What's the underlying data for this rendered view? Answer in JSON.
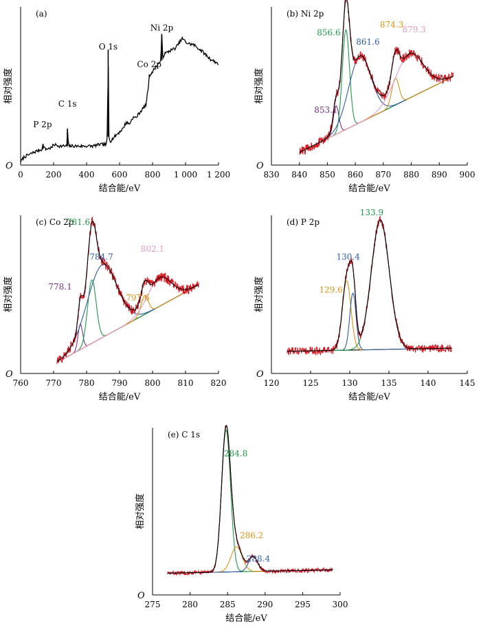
{
  "colors": {
    "raw": "#d8151f",
    "envelope": "#000000",
    "background": "#000000",
    "green": "#1a9a45",
    "blue": "#2b5ba8",
    "purple": "#7a2e86",
    "orange": "#e2920f",
    "pink": "#e89ac2"
  },
  "chart_data": [
    {
      "id": "a",
      "type": "line",
      "panel_label": "(a)",
      "xlabel": "结合能/eV",
      "ylabel": "相对强度",
      "origin_label": "O",
      "xlim": [
        0,
        1200
      ],
      "xticks": [
        0,
        200,
        400,
        600,
        800,
        1000,
        1200
      ],
      "xtick_labels": [
        "0",
        "200",
        "400",
        "600",
        "800",
        "1 000",
        "1 200"
      ],
      "annotations": [
        {
          "text": "P 2p",
          "x": 133,
          "y": 0.24
        },
        {
          "text": "C 1s",
          "x": 284,
          "y": 0.37
        },
        {
          "text": "O 1s",
          "x": 531,
          "y": 0.73
        },
        {
          "text": "Co 2p",
          "x": 780,
          "y": 0.62
        },
        {
          "text": "Ni 2p",
          "x": 856,
          "y": 0.85
        }
      ],
      "series": [
        {
          "role": "survey",
          "color": "envelope",
          "x": [
            0,
            20,
            60,
            100,
            130,
            135,
            150,
            190,
            200,
            240,
            280,
            284,
            290,
            320,
            360,
            400,
            440,
            480,
            520,
            526,
            531,
            536,
            545,
            560,
            580,
            600,
            620,
            640,
            660,
            680,
            700,
            720,
            760,
            775,
            780,
            790,
            800,
            820,
            850,
            856,
            862,
            870,
            900,
            940,
            980,
            1010,
            1050,
            1100,
            1150,
            1200
          ],
          "y": [
            0.02,
            0.05,
            0.07,
            0.09,
            0.1,
            0.13,
            0.1,
            0.11,
            0.13,
            0.12,
            0.12,
            0.23,
            0.12,
            0.12,
            0.12,
            0.12,
            0.12,
            0.13,
            0.13,
            0.18,
            0.73,
            0.18,
            0.15,
            0.17,
            0.19,
            0.21,
            0.23,
            0.27,
            0.26,
            0.3,
            0.3,
            0.33,
            0.38,
            0.5,
            0.56,
            0.58,
            0.59,
            0.62,
            0.66,
            0.82,
            0.68,
            0.7,
            0.72,
            0.74,
            0.8,
            0.77,
            0.76,
            0.72,
            0.67,
            0.64
          ]
        }
      ]
    },
    {
      "id": "b",
      "type": "line",
      "panel_label": "(b) Ni 2p",
      "xlabel": "结合能/eV",
      "ylabel": "相对强度",
      "origin_label": "O",
      "xlim": [
        830,
        900
      ],
      "xticks": [
        830,
        840,
        850,
        860,
        870,
        880,
        890,
        900
      ],
      "xtick_labels": [
        "830",
        "840",
        "850",
        "860",
        "870",
        "880",
        "890",
        "900"
      ],
      "annotations": [
        {
          "text": "853.1",
          "x": 849.5,
          "y": 0.33,
          "color": "purple"
        },
        {
          "text": "856.6",
          "x": 850.5,
          "y": 0.82,
          "color": "green"
        },
        {
          "text": "861.6",
          "x": 864.5,
          "y": 0.76,
          "color": "blue"
        },
        {
          "text": "874.3",
          "x": 873.0,
          "y": 0.87,
          "color": "orange"
        },
        {
          "text": "879.3",
          "x": 881.0,
          "y": 0.84,
          "color": "pink"
        }
      ],
      "background": {
        "x": [
          840,
          895
        ],
        "y": [
          0.08,
          0.56
        ]
      },
      "peaks": [
        {
          "center": 853.1,
          "height": 0.18,
          "width": 1.0,
          "color": "purple"
        },
        {
          "center": 856.6,
          "height": 0.63,
          "width": 1.3,
          "color": "green"
        },
        {
          "center": 861.6,
          "height": 0.42,
          "width": 4.0,
          "color": "blue"
        },
        {
          "center": 874.3,
          "height": 0.17,
          "width": 1.3,
          "color": "orange"
        },
        {
          "center": 879.3,
          "height": 0.28,
          "width": 5.0,
          "color": "pink"
        }
      ],
      "noise": 0.03
    },
    {
      "id": "c",
      "type": "line",
      "panel_label": "(c) Co 2p",
      "xlabel": "结合能/eV",
      "ylabel": "相对强度",
      "origin_label": "O",
      "xlim": [
        760,
        820
      ],
      "xticks": [
        760,
        770,
        780,
        790,
        800,
        810,
        820
      ],
      "xtick_labels": [
        "760",
        "770",
        "780",
        "790",
        "800",
        "810",
        "820"
      ],
      "annotations": [
        {
          "text": "778.1",
          "x": 772.0,
          "y": 0.53,
          "color": "purple"
        },
        {
          "text": "781.6",
          "x": 777.5,
          "y": 0.94,
          "color": "green"
        },
        {
          "text": "784.7",
          "x": 784.5,
          "y": 0.72,
          "color": "blue"
        },
        {
          "text": "797.6",
          "x": 795.5,
          "y": 0.46,
          "color": "orange"
        },
        {
          "text": "802.1",
          "x": 800.0,
          "y": 0.77,
          "color": "pink"
        }
      ],
      "background": {
        "x": [
          771,
          814
        ],
        "y": [
          0.07,
          0.56
        ]
      },
      "peaks": [
        {
          "center": 778.1,
          "height": 0.16,
          "width": 0.7,
          "color": "purple"
        },
        {
          "center": 781.6,
          "height": 0.4,
          "width": 1.3,
          "color": "green"
        },
        {
          "center": 784.7,
          "height": 0.46,
          "width": 4.5,
          "color": "blue"
        },
        {
          "center": 797.6,
          "height": 0.12,
          "width": 1.1,
          "color": "orange"
        },
        {
          "center": 802.1,
          "height": 0.18,
          "width": 3.6,
          "color": "pink"
        }
      ],
      "noise": 0.03
    },
    {
      "id": "d",
      "type": "line",
      "panel_label": "(d) P 2p",
      "xlabel": "结合能/eV",
      "ylabel": "相对强度",
      "origin_label": "O",
      "xlim": [
        120,
        145
      ],
      "xticks": [
        120,
        125,
        130,
        135,
        140,
        145
      ],
      "xtick_labels": [
        "120",
        "125",
        "130",
        "135",
        "140",
        "145"
      ],
      "annotations": [
        {
          "text": "129.6",
          "x": 127.6,
          "y": 0.51,
          "color": "orange"
        },
        {
          "text": "130.4",
          "x": 129.8,
          "y": 0.72,
          "color": "blue"
        },
        {
          "text": "133.9",
          "x": 132.8,
          "y": 1.0,
          "color": "green"
        }
      ],
      "background": {
        "x": [
          122,
          143
        ],
        "y": [
          0.14,
          0.16
        ]
      },
      "peaks": [
        {
          "center": 129.6,
          "height": 0.44,
          "width": 0.55,
          "color": "orange"
        },
        {
          "center": 130.4,
          "height": 0.36,
          "width": 0.4,
          "color": "blue"
        },
        {
          "center": 133.9,
          "height": 0.82,
          "width": 1.15,
          "color": "green"
        }
      ],
      "noise": 0.025
    },
    {
      "id": "e",
      "type": "line",
      "panel_label": "(e) C 1s",
      "xlabel": "结合能/eV",
      "ylabel": "相对强度",
      "origin_label": "O",
      "xlim": [
        275,
        300
      ],
      "xticks": [
        275,
        280,
        285,
        290,
        295,
        300
      ],
      "xtick_labels": [
        "275",
        "280",
        "285",
        "290",
        "295",
        "300"
      ],
      "annotations": [
        {
          "text": "284.8",
          "x": 286.1,
          "y": 0.83,
          "color": "green"
        },
        {
          "text": "286.2",
          "x": 288.2,
          "y": 0.34,
          "color": "orange"
        },
        {
          "text": "288.4",
          "x": 289.1,
          "y": 0.2,
          "color": "blue"
        }
      ],
      "background": {
        "x": [
          277,
          299
        ],
        "y": [
          0.13,
          0.15
        ]
      },
      "peaks": [
        {
          "center": 284.8,
          "height": 0.85,
          "width": 0.6,
          "color": "green"
        },
        {
          "center": 286.2,
          "height": 0.15,
          "width": 0.75,
          "color": "orange"
        },
        {
          "center": 288.4,
          "height": 0.09,
          "width": 0.6,
          "color": "blue"
        }
      ],
      "noise": 0.012
    }
  ]
}
